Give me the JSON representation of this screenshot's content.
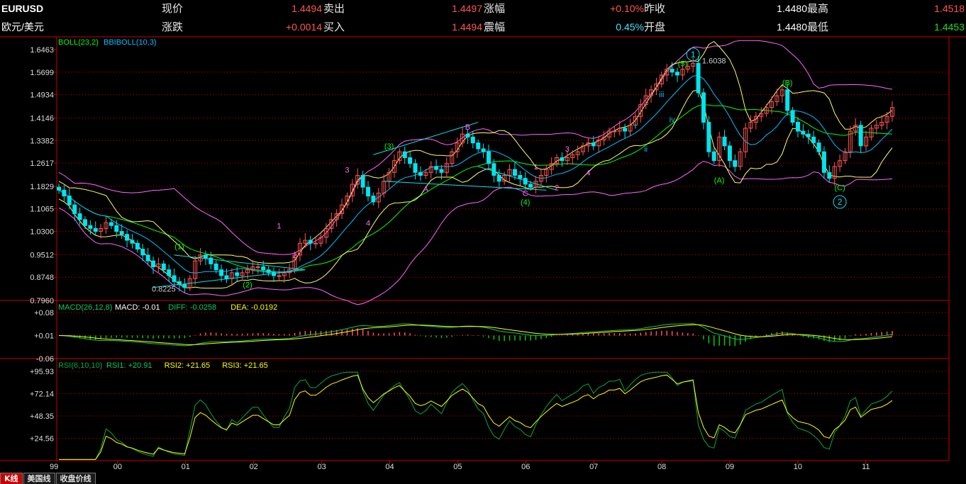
{
  "quote": {
    "symbol": "EURUSD",
    "name": "欧元/美元",
    "rows": [
      [
        {
          "label": "现价",
          "value": "1.4494",
          "color": "#ff5555"
        },
        {
          "label": "卖出",
          "value": "1.4497",
          "color": "#ff5555"
        },
        {
          "label": "涨幅",
          "value": "+0.10%",
          "color": "#ff5555"
        },
        {
          "label": "昨收",
          "value": "1.4480",
          "color": "#ffffff"
        },
        {
          "label": "最高",
          "value": "1.4518",
          "color": "#ff5555"
        }
      ],
      [
        {
          "label": "涨跌",
          "value": "+0.0014",
          "color": "#ff5555"
        },
        {
          "label": "买入",
          "value": "1.4494",
          "color": "#ff5555"
        },
        {
          "label": "震幅",
          "value": "0.45%",
          "color": "#44e4ff"
        },
        {
          "label": "开盘",
          "value": "1.4480",
          "color": "#ffffff"
        },
        {
          "label": "最低",
          "value": "1.4453",
          "color": "#22dd22"
        }
      ]
    ]
  },
  "tabs": [
    {
      "label": "K线",
      "active": true
    },
    {
      "label": "美国线",
      "active": false
    },
    {
      "label": "收盘价线",
      "active": false
    }
  ],
  "colors": {
    "up": "#ff5555",
    "down": "#00e5ee",
    "axis": "#cc0000",
    "grid": "#cc0000",
    "boll_upper": "#ff66ff",
    "boll_mid": "#00ff00",
    "boll_lower": "#ffff66",
    "bbi": "#00bfff",
    "wave": "#00e5ee",
    "dea": "#ffff00",
    "diff": "#00cc66",
    "rsi1": "#00aa44",
    "rsi2": "#ffff00",
    "rsi3": "#ffff00"
  },
  "chart_data": [
    {
      "type": "candlestick",
      "title": "BOLL(23,2)",
      "subtitle": "BBIBOLL(10,3)",
      "ylim": [
        0.796,
        1.6463
      ],
      "yticks": [
        "1.6463",
        "1.5699",
        "1.4934",
        "1.4146",
        "1.3382",
        "1.2617",
        "1.1829",
        "1.1065",
        "1.0300",
        "0.9512",
        "0.8748",
        "0.7960"
      ],
      "x_labels": [
        "99",
        "00",
        "01",
        "02",
        "03",
        "04",
        "05",
        "06",
        "07",
        "08",
        "09",
        "10",
        "11"
      ],
      "closes": [
        1.17,
        1.15,
        1.12,
        1.09,
        1.07,
        1.05,
        1.04,
        1.03,
        1.04,
        1.06,
        1.05,
        1.03,
        1.02,
        1.0,
        0.99,
        0.97,
        0.95,
        0.93,
        0.91,
        0.92,
        0.9,
        0.88,
        0.86,
        0.85,
        0.84,
        0.87,
        0.93,
        0.95,
        0.94,
        0.92,
        0.9,
        0.88,
        0.87,
        0.89,
        0.88,
        0.89,
        0.9,
        0.91,
        0.91,
        0.9,
        0.89,
        0.88,
        0.88,
        0.89,
        0.9,
        0.95,
        0.99,
        1.0,
        0.99,
        0.99,
        1.01,
        1.04,
        1.07,
        1.09,
        1.12,
        1.15,
        1.19,
        1.22,
        1.18,
        1.15,
        1.13,
        1.16,
        1.2,
        1.23,
        1.27,
        1.3,
        1.28,
        1.26,
        1.23,
        1.22,
        1.23,
        1.25,
        1.24,
        1.23,
        1.26,
        1.3,
        1.33,
        1.36,
        1.35,
        1.33,
        1.31,
        1.3,
        1.26,
        1.22,
        1.2,
        1.22,
        1.24,
        1.22,
        1.21,
        1.19,
        1.18,
        1.2,
        1.22,
        1.24,
        1.26,
        1.28,
        1.27,
        1.28,
        1.29,
        1.3,
        1.32,
        1.33,
        1.32,
        1.34,
        1.35,
        1.37,
        1.37,
        1.38,
        1.37,
        1.39,
        1.42,
        1.46,
        1.49,
        1.51,
        1.53,
        1.56,
        1.58,
        1.57,
        1.56,
        1.58,
        1.59,
        1.6,
        1.5,
        1.4,
        1.3,
        1.27,
        1.35,
        1.32,
        1.27,
        1.25,
        1.3,
        1.38,
        1.4,
        1.42,
        1.43,
        1.45,
        1.47,
        1.49,
        1.51,
        1.44,
        1.4,
        1.37,
        1.36,
        1.35,
        1.33,
        1.3,
        1.23,
        1.21,
        1.25,
        1.27,
        1.3,
        1.37,
        1.39,
        1.32,
        1.35,
        1.38,
        1.39,
        1.4,
        1.42,
        1.45
      ],
      "annotations": [
        {
          "text": "(1)",
          "color": "#00ff00",
          "i": 23,
          "price": 0.97
        },
        {
          "text": "(2)",
          "color": "#00ff00",
          "i": 36,
          "price": 0.84
        },
        {
          "text": "0.8225",
          "color": "#cccccc",
          "i": 20,
          "price": 0.826
        },
        {
          "text": "1",
          "color": "#ff66ff",
          "i": 42,
          "price": 1.04
        },
        {
          "text": "2",
          "color": "#ff66ff",
          "i": 45,
          "price": 0.94
        },
        {
          "text": "3",
          "color": "#ff66ff",
          "i": 55,
          "price": 1.23
        },
        {
          "text": "4",
          "color": "#ff66ff",
          "i": 59,
          "price": 1.05
        },
        {
          "text": "(3)",
          "color": "#00ff00",
          "i": 63,
          "price": 1.31
        },
        {
          "text": "A",
          "color": "#ff66ff",
          "i": 70,
          "price": 1.165
        },
        {
          "text": "B",
          "color": "#ff66ff",
          "i": 78,
          "price": 1.375
        },
        {
          "text": "C",
          "color": "#ff66ff",
          "i": 89,
          "price": 1.15
        },
        {
          "text": "(4)",
          "color": "#00ff00",
          "i": 89,
          "price": 1.12
        },
        {
          "text": "1",
          "color": "#ff66ff",
          "i": 91,
          "price": 1.24
        },
        {
          "text": "2",
          "color": "#ff66ff",
          "i": 95,
          "price": 1.17
        },
        {
          "text": "3",
          "color": "#ff66ff",
          "i": 97,
          "price": 1.3
        },
        {
          "text": "4",
          "color": "#ff66ff",
          "i": 101,
          "price": 1.22
        },
        {
          "text": "i",
          "color": "#00bfff",
          "i": 110,
          "price": 1.38
        },
        {
          "text": "ii",
          "color": "#00bfff",
          "i": 112,
          "price": 1.3
        },
        {
          "text": "iii",
          "color": "#00bfff",
          "i": 115,
          "price": 1.485
        },
        {
          "text": "iv",
          "color": "#00bfff",
          "i": 117,
          "price": 1.4
        },
        {
          "text": "(5)",
          "color": "#00ff00",
          "i": 119,
          "price": 1.59
        },
        {
          "text": "1.6038",
          "color": "#cccccc",
          "i": 125,
          "price": 1.6
        },
        {
          "text": "(A)",
          "color": "#00ff00",
          "i": 126,
          "price": 1.195
        },
        {
          "text": "(B)",
          "color": "#00ff00",
          "i": 139,
          "price": 1.525
        },
        {
          "text": "(C)",
          "color": "#00ff00",
          "i": 149,
          "price": 1.17
        }
      ],
      "circles": [
        {
          "text": "1",
          "i": 121,
          "price": 1.63
        },
        {
          "text": "2",
          "i": 149,
          "price": 1.13
        }
      ]
    },
    {
      "type": "bar",
      "title": "MACD(26,12,8)",
      "legend": [
        {
          "text": "MACD: -0.01",
          "color": "#ffffff"
        },
        {
          "text": "DIFF: -0.0258",
          "color": "#00cc66"
        },
        {
          "text": "DEA: -0.0192",
          "color": "#ffff00"
        }
      ],
      "ylim": [
        -0.06,
        0.08
      ],
      "yticks": [
        "+0.08",
        "+0.01",
        "-0.06"
      ]
    },
    {
      "type": "line",
      "title": "RSI(6,10,10)",
      "legend": [
        {
          "text": "RSI1: +20.91",
          "color": "#00cc66"
        },
        {
          "text": "RSI2: +21.65",
          "color": "#ffff00"
        },
        {
          "text": "RSI3: +21.65",
          "color": "#ffff00"
        }
      ],
      "ylim": [
        0.78,
        95.93
      ],
      "yticks": [
        "+95.93",
        "+72.14",
        "+48.35",
        "+24.56"
      ]
    }
  ]
}
